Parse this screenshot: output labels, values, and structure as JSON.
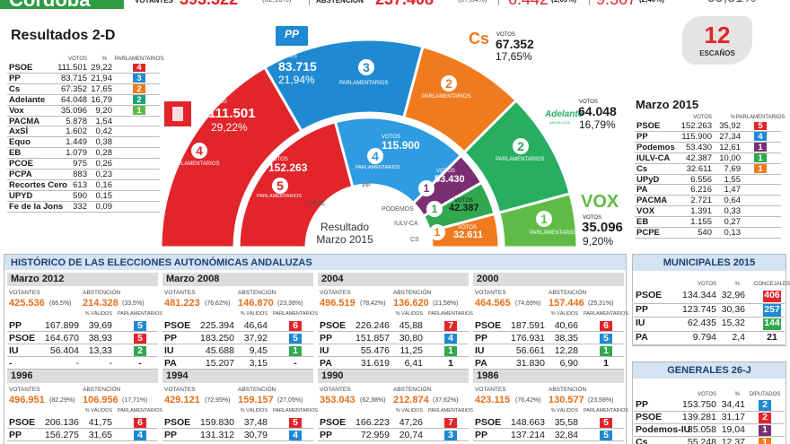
{
  "header": {
    "place": "Córdoba",
    "votantes_label": "VOTANTES",
    "votantes": "393.322",
    "votantes_pct": "(62,16%)",
    "abstencion_label": "ABSTENCIÓN",
    "abstencion": "237.408",
    "abstencion_pct": "(37,84%)",
    "blancos": "6.442",
    "blancos_pct": "(1,69%)",
    "nulos": "9.367",
    "nulos_pct": "(2,40%)",
    "escrutado": "99,31%"
  },
  "seats_badge": {
    "value": "12",
    "label": "ESCAÑOS"
  },
  "resultados": {
    "title": "Resultados 2-D",
    "columns": [
      "VOTOS",
      "%",
      "PARLAMENTARIOS"
    ],
    "rows": [
      {
        "party": "PSOE",
        "votes": "111.501",
        "pct": "29,22",
        "seats": 4,
        "color": "#e2242b"
      },
      {
        "party": "PP",
        "votes": "83.715",
        "pct": "21,94",
        "seats": 3,
        "color": "#1f8ad2"
      },
      {
        "party": "Cs",
        "votes": "67.352",
        "pct": "17,65",
        "seats": 2,
        "color": "#f07b1f"
      },
      {
        "party": "Adelante",
        "votes": "64.048",
        "pct": "16,79",
        "seats": 2,
        "color": "#1aa57a"
      },
      {
        "party": "Vox",
        "votes": "35.096",
        "pct": "9,20",
        "seats": 1,
        "color": "#5fbb46"
      },
      {
        "party": "PACMA",
        "votes": "5.878",
        "pct": "1,54"
      },
      {
        "party": "AxSÍ",
        "votes": "1.602",
        "pct": "0,42"
      },
      {
        "party": "Equo",
        "votes": "1.449",
        "pct": "0,38"
      },
      {
        "party": "EB",
        "votes": "1.079",
        "pct": "0,28"
      },
      {
        "party": "PCOE",
        "votes": "975",
        "pct": "0,26"
      },
      {
        "party": "PCPA",
        "votes": "883",
        "pct": "0,23"
      },
      {
        "party": "Recortes Cero",
        "votes": "613",
        "pct": "0,16"
      },
      {
        "party": "UPYD",
        "votes": "590",
        "pct": "0,15"
      },
      {
        "party": "Fe de la Jons",
        "votes": "332",
        "pct": "0,09"
      }
    ]
  },
  "hemicycle": {
    "outer": [
      {
        "logo": "",
        "votes_label": "VOTOS",
        "votes": "111.501",
        "pct": "29,22%",
        "seats": 4,
        "seats_label": "PARLAMENTARIOS",
        "color": "#e2242b"
      },
      {
        "logo": "PP",
        "votes_label": "VOTOS",
        "votes": "83.715",
        "pct": "21,94%",
        "seats": 3,
        "seats_label": "PARLAMENTARIOS",
        "color": "#1f8ad2"
      },
      {
        "logo": "Cs",
        "votes_label": "VOTOS",
        "votes": "67.352",
        "pct": "17,65%",
        "seats": 2,
        "seats_label": "PARLAMENTARIOS",
        "color": "#f07b1f"
      },
      {
        "logo": "Adelante",
        "logo_sub": "ANDALUCÍA",
        "votes_label": "VOTOS",
        "votes": "64.048",
        "pct": "16,79%",
        "seats": 2,
        "seats_label": "PARLAMENTARIOS",
        "color": "#27ae60"
      },
      {
        "logo": "VOX",
        "votes_label": "VOTOS",
        "votes": "35.096",
        "pct": "9,20%",
        "seats": 1,
        "seats_label": "PARLAMENTARIO",
        "color": "#5fbb46"
      }
    ],
    "inner": [
      {
        "party": "PSOE",
        "votes_label": "VOTOS",
        "votes": "152.263",
        "seats": 5,
        "seats_label": "PARLAMENTARIOS",
        "color": "#e2242b"
      },
      {
        "party": "PP",
        "votes_label": "VOTOS",
        "votes": "115.900",
        "seats": 4,
        "seats_label": "PARLAMENTARIOS",
        "color": "#2f9be0"
      },
      {
        "party": "PODEMOS",
        "votes_label": "VOTOS",
        "votes": "53.430",
        "seats": 1,
        "color": "#7a2f72"
      },
      {
        "party": "IULV-CA",
        "votes_label": "VOTOS",
        "votes": "42.387",
        "seats": 1,
        "color": "#2fa84f"
      },
      {
        "party": "CS",
        "votes_label": "VOTOS",
        "votes": "32.611",
        "seats": 1,
        "color": "#f07b1f"
      }
    ],
    "inner_title": [
      "Resultado",
      "Marzo 2015"
    ]
  },
  "marzo2015": {
    "title": "Marzo 2015",
    "columns": [
      "VOTOS",
      "%",
      "PARLAMENTARIOS"
    ],
    "rows": [
      {
        "party": "PSOE",
        "votes": "152.263",
        "pct": "35,92",
        "seats": 5,
        "color": "#e2242b"
      },
      {
        "party": "PP",
        "votes": "115.900",
        "pct": "27,34",
        "seats": 4,
        "color": "#1f8ad2"
      },
      {
        "party": "Podemos",
        "votes": "53.430",
        "pct": "12,61",
        "seats": 1,
        "color": "#7a2f72"
      },
      {
        "party": "IULV-CA",
        "votes": "42.387",
        "pct": "10,00",
        "seats": 1,
        "color": "#2fa84f"
      },
      {
        "party": "Cs",
        "votes": "32.611",
        "pct": "7,69",
        "seats": 1,
        "color": "#f07b1f"
      },
      {
        "party": "UPyD",
        "votes": "6.556",
        "pct": "1,55"
      },
      {
        "party": "PA",
        "votes": "6.216",
        "pct": "1,47"
      },
      {
        "party": "PACMA",
        "votes": "2.721",
        "pct": "0,64"
      },
      {
        "party": "VOX",
        "votes": "1.391",
        "pct": "0,33"
      },
      {
        "party": "EB",
        "votes": "1.155",
        "pct": "0,27"
      },
      {
        "party": "PCPE",
        "votes": "540",
        "pct": "0,13"
      }
    ]
  },
  "historico": {
    "title": "HISTÓRICO DE LAS ELECCIONES AUTONÓMICAS ANDALUZAS",
    "labels": {
      "votantes": "VOTANTES",
      "abstencion": "ABSTENCIÓN",
      "validos": "% VÁLIDOS",
      "parlamentarios": "PARLAMENTARIOS"
    },
    "panels": [
      {
        "title": "Marzo 2012",
        "votantes": "425.536",
        "votantes_pct": "(66,5%)",
        "abstencion": "214.328",
        "abstencion_pct": "(33,5%)",
        "rows": [
          {
            "party": "PP",
            "votes": "167.899",
            "pct": "39,69",
            "seats": "5",
            "color": "#1f8ad2"
          },
          {
            "party": "PSOE",
            "votes": "164.670",
            "pct": "38,93",
            "seats": "5",
            "color": "#e2242b"
          },
          {
            "party": "IU",
            "votes": "56.404",
            "pct": "13,33",
            "seats": "2",
            "color": "#2fa84f"
          },
          {
            "party": "-",
            "votes": "-",
            "pct": "-",
            "seats": "-"
          }
        ]
      },
      {
        "title": "Marzo 2008",
        "votantes": "481.223",
        "votantes_pct": "(76,62%)",
        "abstencion": "146.870",
        "abstencion_pct": "(23,38%)",
        "rows": [
          {
            "party": "PSOE",
            "votes": "225.394",
            "pct": "46,64",
            "seats": "6",
            "color": "#e2242b"
          },
          {
            "party": "PP",
            "votes": "183.250",
            "pct": "37,92",
            "seats": "5",
            "color": "#1f8ad2"
          },
          {
            "party": "IU",
            "votes": "45.688",
            "pct": "9,45",
            "seats": "1",
            "color": "#2fa84f"
          },
          {
            "party": "PA",
            "votes": "15.207",
            "pct": "3,15",
            "seats": "-"
          }
        ]
      },
      {
        "title": "2004",
        "votantes": "496.519",
        "votantes_pct": "(78,42%)",
        "abstencion": "136.620",
        "abstencion_pct": "(21,58%)",
        "rows": [
          {
            "party": "PSOE",
            "votes": "226.246",
            "pct": "45,88",
            "seats": "7",
            "color": "#e2242b"
          },
          {
            "party": "PP",
            "votes": "151.857",
            "pct": "30,80",
            "seats": "4",
            "color": "#1f8ad2"
          },
          {
            "party": "IU",
            "votes": "55.476",
            "pct": "11,25",
            "seats": "1",
            "color": "#2fa84f"
          },
          {
            "party": "PA",
            "votes": "31.619",
            "pct": "6,41",
            "seats": "1"
          }
        ]
      },
      {
        "title": "2000",
        "votantes": "464.565",
        "votantes_pct": "(74,69%)",
        "abstencion": "157.446",
        "abstencion_pct": "(25,31%)",
        "rows": [
          {
            "party": "PSOE",
            "votes": "187.591",
            "pct": "40,66",
            "seats": "6",
            "color": "#e2242b"
          },
          {
            "party": "PP",
            "votes": "176.931",
            "pct": "38,35",
            "seats": "5",
            "color": "#1f8ad2"
          },
          {
            "party": "IU",
            "votes": "56.661",
            "pct": "12,28",
            "seats": "1",
            "color": "#2fa84f"
          },
          {
            "party": "PA",
            "votes": "31.830",
            "pct": "6,90",
            "seats": "1"
          }
        ]
      },
      {
        "title": "1996",
        "votantes": "496.951",
        "votantes_pct": "(82,29%)",
        "abstencion": "106.956",
        "abstencion_pct": "(17,71%)",
        "rows": [
          {
            "party": "PSOE",
            "votes": "206.136",
            "pct": "41,75",
            "seats": "6",
            "color": "#e2242b"
          },
          {
            "party": "PP",
            "votes": "156.275",
            "pct": "31,65",
            "seats": "4",
            "color": "#1f8ad2"
          }
        ]
      },
      {
        "title": "1994",
        "votantes": "429.121",
        "votantes_pct": "(72,95%)",
        "abstencion": "159.157",
        "abstencion_pct": "(27,05%)",
        "rows": [
          {
            "party": "PSOE",
            "votes": "159.830",
            "pct": "37,48",
            "seats": "5",
            "color": "#e2242b"
          },
          {
            "party": "PP",
            "votes": "131.312",
            "pct": "30,79",
            "seats": "4",
            "color": "#1f8ad2"
          }
        ]
      },
      {
        "title": "1990",
        "votantes": "353.043",
        "votantes_pct": "(62,38%)",
        "abstencion": "212.874",
        "abstencion_pct": "(37,62%)",
        "rows": [
          {
            "party": "PSOE",
            "votes": "166.223",
            "pct": "47,26",
            "seats": "7",
            "color": "#e2242b"
          },
          {
            "party": "PP",
            "votes": "72.959",
            "pct": "20,74",
            "seats": "3",
            "color": "#1f8ad2"
          }
        ]
      },
      {
        "title": "1986",
        "votantes": "423.115",
        "votantes_pct": "(76,42%)",
        "abstencion": "130.577",
        "abstencion_pct": "(23,58%)",
        "rows": [
          {
            "party": "PSOE",
            "votes": "148.663",
            "pct": "35,58",
            "seats": "5",
            "color": "#e2242b"
          },
          {
            "party": "PP",
            "votes": "137.214",
            "pct": "32,84",
            "seats": "5",
            "color": "#1f8ad2"
          }
        ]
      }
    ]
  },
  "municipales": {
    "title": "MUNICIPALES 2015",
    "columns": [
      "VOTOS",
      "%",
      "CONCEJALES"
    ],
    "rows": [
      {
        "party": "PSOE",
        "votes": "134.344",
        "pct": "32,96",
        "seats": "406",
        "color": "#e2242b"
      },
      {
        "party": "PP",
        "votes": "123.745",
        "pct": "30,36",
        "seats": "257",
        "color": "#1f8ad2"
      },
      {
        "party": "IU",
        "votes": "62.435",
        "pct": "15,32",
        "seats": "144",
        "color": "#2fa84f"
      },
      {
        "party": "PA",
        "votes": "9.794",
        "pct": "2,4",
        "seats": "21"
      }
    ]
  },
  "generales": {
    "title": "GENERALES 26-J",
    "columns": [
      "VOTOS",
      "%",
      "DIPUTADOS"
    ],
    "rows": [
      {
        "party": "PP",
        "votes": "153.750",
        "pct": "34,41",
        "seats": "2",
        "color": "#1f8ad2"
      },
      {
        "party": "PSOE",
        "votes": "139.281",
        "pct": "31,17",
        "seats": "2",
        "color": "#e2242b"
      },
      {
        "party": "Podemos-IU",
        "votes": "85.058",
        "pct": "19,04",
        "seats": "1",
        "color": "#7a2f72"
      },
      {
        "party": "Cs",
        "votes": "55.248",
        "pct": "12,37",
        "seats": "1",
        "color": "#f07b1f"
      }
    ]
  }
}
